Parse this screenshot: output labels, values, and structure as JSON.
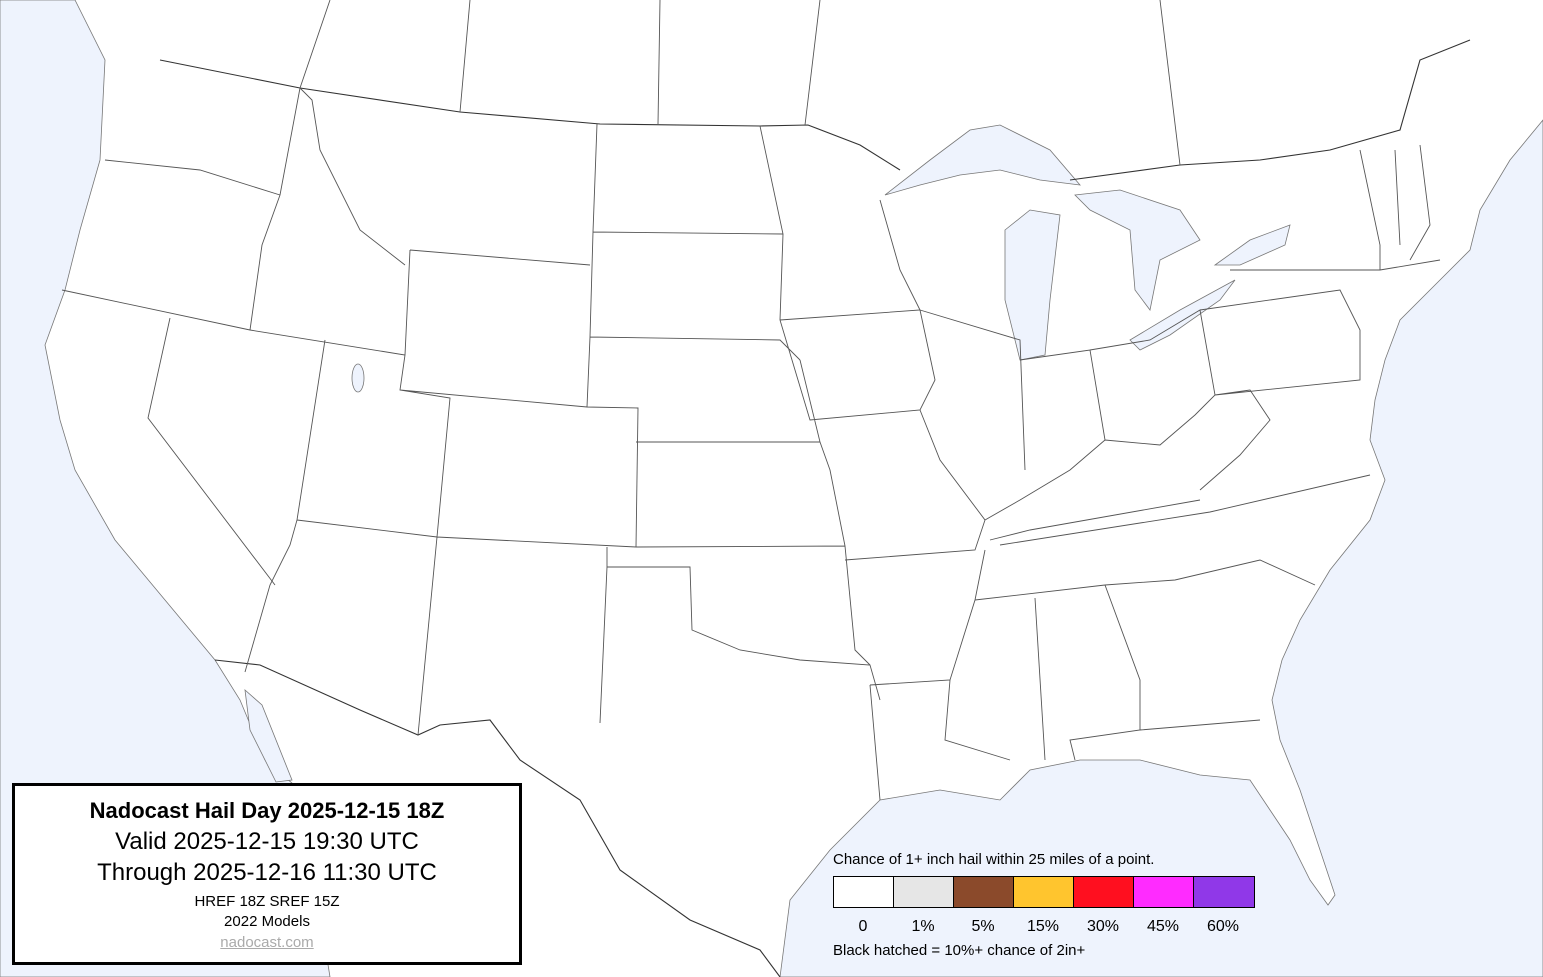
{
  "title_box": {
    "title": "Nadocast Hail Day 2025-12-15 18Z",
    "valid": "Valid 2025-12-15 19:30 UTC",
    "through": "Through 2025-12-16 11:30 UTC",
    "models": "HREF 18Z SREF 15Z",
    "model_year": "2022 Models",
    "site": "nadocast.com"
  },
  "legend": {
    "title": "Chance of 1+ inch hail within 25 miles of a point.",
    "bins": [
      {
        "label": "0",
        "color": "#ffffff"
      },
      {
        "label": "1%",
        "color": "#e6e6e6"
      },
      {
        "label": "5%",
        "color": "#8b4a2b"
      },
      {
        "label": "15%",
        "color": "#ffc52e"
      },
      {
        "label": "30%",
        "color": "#ff0f1f"
      },
      {
        "label": "45%",
        "color": "#ff2bff"
      },
      {
        "label": "60%",
        "color": "#9038e8"
      }
    ],
    "note": "Black hatched = 10%+ chance of 2in+"
  },
  "map": {
    "water_color": "#eef3fd",
    "land_color": "#ffffff",
    "hail_areas": []
  }
}
